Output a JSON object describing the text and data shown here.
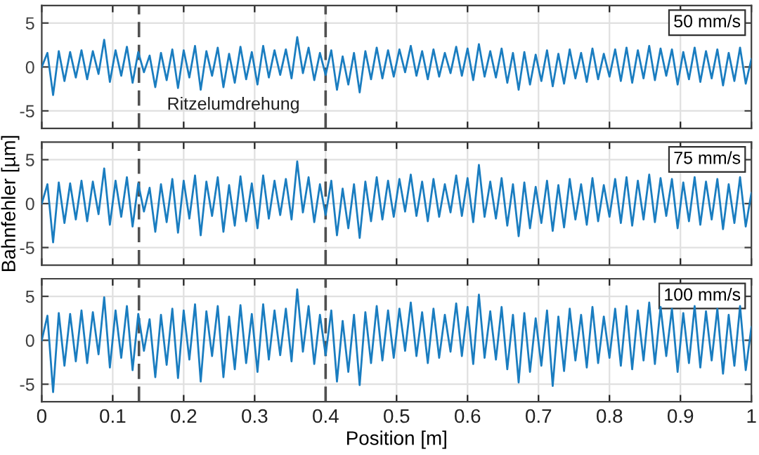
{
  "chart_data": [
    {
      "type": "line",
      "ylim": [
        -7,
        7
      ],
      "yticks": [
        -5,
        0,
        5
      ],
      "xlim": [
        0,
        1
      ],
      "xticks": [
        0,
        0.1,
        0.2,
        0.3,
        0.4,
        0.5,
        0.6,
        0.7,
        0.8,
        0.9,
        1
      ],
      "grid": true,
      "tick_labels": "y",
      "annotations": [
        "50 mm/s",
        "Ritzelumdrehung"
      ],
      "ref_lines": [
        {
          "axis": "x",
          "value": 0.137,
          "color": "#505050",
          "line_style": "dashed"
        },
        {
          "axis": "x",
          "value": 0.4,
          "color": "#505050",
          "line_style": "dashed"
        }
      ],
      "x": [
        0,
        0.008,
        0.016,
        0.024,
        0.032,
        0.04,
        0.048,
        0.056,
        0.064,
        0.072,
        0.08,
        0.088,
        0.096,
        0.104,
        0.112,
        0.12,
        0.128,
        0.136,
        0.144,
        0.152,
        0.16,
        0.168,
        0.176,
        0.184,
        0.192,
        0.2,
        0.208,
        0.216,
        0.224,
        0.232,
        0.24,
        0.248,
        0.256,
        0.264,
        0.272,
        0.28,
        0.288,
        0.296,
        0.304,
        0.312,
        0.32,
        0.328,
        0.336,
        0.344,
        0.352,
        0.36,
        0.368,
        0.376,
        0.384,
        0.392,
        0.4,
        0.408,
        0.416,
        0.424,
        0.432,
        0.44,
        0.448,
        0.456,
        0.464,
        0.472,
        0.48,
        0.488,
        0.496,
        0.504,
        0.512,
        0.52,
        0.528,
        0.536,
        0.544,
        0.552,
        0.56,
        0.568,
        0.576,
        0.584,
        0.592,
        0.6,
        0.608,
        0.616,
        0.624,
        0.632,
        0.64,
        0.648,
        0.656,
        0.664,
        0.672,
        0.68,
        0.688,
        0.696,
        0.704,
        0.712,
        0.72,
        0.728,
        0.736,
        0.744,
        0.752,
        0.76,
        0.768,
        0.776,
        0.784,
        0.792,
        0.8,
        0.808,
        0.816,
        0.824,
        0.832,
        0.84,
        0.848,
        0.856,
        0.864,
        0.872,
        0.88,
        0.888,
        0.896,
        0.904,
        0.912,
        0.92,
        0.928,
        0.936,
        0.944,
        0.952,
        0.96,
        0.968,
        0.976,
        0.984,
        0.992,
        1.0
      ],
      "series": [
        {
          "color": "#1a7dc0",
          "values": [
            0,
            1.6,
            -3.2,
            1.8,
            -1.6,
            1.7,
            -1.2,
            1.9,
            -1.4,
            1.8,
            -0.8,
            3.1,
            -1.7,
            1.9,
            -1.0,
            2.3,
            -1.8,
            1.7,
            -0.6,
            1.3,
            -2.3,
            1.6,
            -1.5,
            2.0,
            -2.4,
            1.9,
            -1.2,
            2.4,
            -2.6,
            1.8,
            -1.0,
            2.2,
            -2.3,
            1.5,
            -1.8,
            2.3,
            -1.4,
            1.7,
            -2.0,
            2.4,
            -1.2,
            1.9,
            -0.9,
            2.0,
            -1.3,
            3.4,
            -0.7,
            2.2,
            -1.5,
            1.6,
            -0.9,
            1.9,
            -2.6,
            1.2,
            -2.0,
            1.6,
            -2.9,
            1.8,
            -1.4,
            2.2,
            -1.3,
            1.9,
            -1.1,
            2.0,
            -0.6,
            2.4,
            -1.0,
            1.8,
            -1.4,
            2.0,
            -1.1,
            1.6,
            -0.7,
            2.3,
            -1.0,
            2.1,
            -1.5,
            2.6,
            -1.1,
            1.8,
            -1.2,
            2.1,
            -1.8,
            1.6,
            -2.6,
            1.7,
            -2.0,
            1.4,
            -1.6,
            1.9,
            -2.2,
            1.5,
            -1.9,
            2.0,
            -1.3,
            1.6,
            -1.7,
            2.1,
            -1.4,
            1.5,
            -1.1,
            2.0,
            -1.6,
            2.2,
            -1.8,
            1.9,
            -1.3,
            2.4,
            -1.5,
            2.1,
            -1.0,
            2.0,
            -2.0,
            1.7,
            -1.4,
            2.2,
            -1.7,
            1.8,
            -1.3,
            2.0,
            -2.1,
            1.6,
            -1.6,
            2.2,
            -1.9,
            0.9
          ]
        }
      ]
    },
    {
      "type": "line",
      "ylim": [
        -7,
        7
      ],
      "yticks": [
        -5,
        0,
        5
      ],
      "xlim": [
        0,
        1
      ],
      "xticks": [
        0,
        0.1,
        0.2,
        0.3,
        0.4,
        0.5,
        0.6,
        0.7,
        0.8,
        0.9,
        1
      ],
      "grid": true,
      "tick_labels": "y",
      "ylabel": "Bahnfehler [µm]",
      "annotations": [
        "75 mm/s"
      ],
      "ref_lines": [
        {
          "axis": "x",
          "value": 0.137,
          "color": "#505050",
          "line_style": "dashed"
        },
        {
          "axis": "x",
          "value": 0.4,
          "color": "#505050",
          "line_style": "dashed"
        }
      ],
      "x": [
        0,
        0.008,
        0.016,
        0.024,
        0.032,
        0.04,
        0.048,
        0.056,
        0.064,
        0.072,
        0.08,
        0.088,
        0.096,
        0.104,
        0.112,
        0.12,
        0.128,
        0.136,
        0.144,
        0.152,
        0.16,
        0.168,
        0.176,
        0.184,
        0.192,
        0.2,
        0.208,
        0.216,
        0.224,
        0.232,
        0.24,
        0.248,
        0.256,
        0.264,
        0.272,
        0.28,
        0.288,
        0.296,
        0.304,
        0.312,
        0.32,
        0.328,
        0.336,
        0.344,
        0.352,
        0.36,
        0.368,
        0.376,
        0.384,
        0.392,
        0.4,
        0.408,
        0.416,
        0.424,
        0.432,
        0.44,
        0.448,
        0.456,
        0.464,
        0.472,
        0.48,
        0.488,
        0.496,
        0.504,
        0.512,
        0.52,
        0.528,
        0.536,
        0.544,
        0.552,
        0.56,
        0.568,
        0.576,
        0.584,
        0.592,
        0.6,
        0.608,
        0.616,
        0.624,
        0.632,
        0.64,
        0.648,
        0.656,
        0.664,
        0.672,
        0.68,
        0.688,
        0.696,
        0.704,
        0.712,
        0.72,
        0.728,
        0.736,
        0.744,
        0.752,
        0.76,
        0.768,
        0.776,
        0.784,
        0.792,
        0.8,
        0.808,
        0.816,
        0.824,
        0.832,
        0.84,
        0.848,
        0.856,
        0.864,
        0.872,
        0.88,
        0.888,
        0.896,
        0.904,
        0.912,
        0.92,
        0.928,
        0.936,
        0.944,
        0.952,
        0.96,
        0.968,
        0.976,
        0.984,
        0.992,
        1.0
      ],
      "series": [
        {
          "color": "#1a7dc0",
          "values": [
            0,
            2.2,
            -4.4,
            2.4,
            -2.2,
            2.3,
            -1.8,
            2.6,
            -2.0,
            2.5,
            -1.2,
            4.0,
            -2.4,
            2.6,
            -1.5,
            3.0,
            -2.6,
            2.3,
            -0.9,
            1.8,
            -3.2,
            2.2,
            -2.1,
            2.8,
            -3.3,
            2.6,
            -1.7,
            3.2,
            -3.6,
            2.5,
            -1.4,
            3.0,
            -3.2,
            2.1,
            -2.5,
            3.1,
            -2.0,
            2.3,
            -2.8,
            3.2,
            -1.7,
            2.6,
            -1.3,
            2.8,
            -1.8,
            4.8,
            -1.0,
            3.0,
            -2.1,
            2.2,
            -1.3,
            2.6,
            -3.6,
            1.7,
            -2.8,
            2.2,
            -3.9,
            2.5,
            -2.0,
            3.0,
            -1.8,
            2.6,
            -1.5,
            2.8,
            -0.9,
            3.3,
            -1.4,
            2.5,
            -2.0,
            2.8,
            -1.5,
            2.2,
            -1.0,
            3.2,
            -1.4,
            2.9,
            -2.1,
            4.4,
            -1.5,
            2.5,
            -1.7,
            2.9,
            -2.5,
            2.2,
            -3.7,
            2.4,
            -2.8,
            1.9,
            -2.2,
            2.6,
            -3.1,
            2.1,
            -2.7,
            2.8,
            -1.8,
            2.2,
            -2.4,
            2.9,
            -2.0,
            2.1,
            -1.5,
            2.8,
            -2.2,
            3.0,
            -2.5,
            2.6,
            -1.8,
            3.3,
            -2.1,
            2.9,
            -1.4,
            2.8,
            -2.8,
            2.4,
            -2.0,
            3.0,
            -2.4,
            2.5,
            -1.8,
            2.8,
            -2.9,
            2.2,
            -2.2,
            3.0,
            -2.6,
            1.2
          ]
        }
      ]
    },
    {
      "type": "line",
      "ylim": [
        -7,
        7
      ],
      "yticks": [
        -5,
        0,
        5
      ],
      "xlim": [
        0,
        1
      ],
      "xticks": [
        0,
        0.1,
        0.2,
        0.3,
        0.4,
        0.5,
        0.6,
        0.7,
        0.8,
        0.9,
        1
      ],
      "grid": true,
      "xlabel": "Position [m]",
      "annotations": [
        "100 mm/s"
      ],
      "ref_lines": [
        {
          "axis": "x",
          "value": 0.137,
          "color": "#505050",
          "line_style": "dashed"
        },
        {
          "axis": "x",
          "value": 0.4,
          "color": "#505050",
          "line_style": "dashed"
        }
      ],
      "x": [
        0,
        0.008,
        0.016,
        0.024,
        0.032,
        0.04,
        0.048,
        0.056,
        0.064,
        0.072,
        0.08,
        0.088,
        0.096,
        0.104,
        0.112,
        0.12,
        0.128,
        0.136,
        0.144,
        0.152,
        0.16,
        0.168,
        0.176,
        0.184,
        0.192,
        0.2,
        0.208,
        0.216,
        0.224,
        0.232,
        0.24,
        0.248,
        0.256,
        0.264,
        0.272,
        0.28,
        0.288,
        0.296,
        0.304,
        0.312,
        0.32,
        0.328,
        0.336,
        0.344,
        0.352,
        0.36,
        0.368,
        0.376,
        0.384,
        0.392,
        0.4,
        0.408,
        0.416,
        0.424,
        0.432,
        0.44,
        0.448,
        0.456,
        0.464,
        0.472,
        0.48,
        0.488,
        0.496,
        0.504,
        0.512,
        0.52,
        0.528,
        0.536,
        0.544,
        0.552,
        0.56,
        0.568,
        0.576,
        0.584,
        0.592,
        0.6,
        0.608,
        0.616,
        0.624,
        0.632,
        0.64,
        0.648,
        0.656,
        0.664,
        0.672,
        0.68,
        0.688,
        0.696,
        0.704,
        0.712,
        0.72,
        0.728,
        0.736,
        0.744,
        0.752,
        0.76,
        0.768,
        0.776,
        0.784,
        0.792,
        0.8,
        0.808,
        0.816,
        0.824,
        0.832,
        0.84,
        0.848,
        0.856,
        0.864,
        0.872,
        0.88,
        0.888,
        0.896,
        0.904,
        0.912,
        0.92,
        0.928,
        0.936,
        0.944,
        0.952,
        0.96,
        0.968,
        0.976,
        0.984,
        0.992,
        1.0
      ],
      "series": [
        {
          "color": "#1a7dc0",
          "values": [
            0,
            2.8,
            -5.9,
            3.1,
            -2.9,
            3.0,
            -2.4,
            3.4,
            -2.6,
            3.2,
            -1.6,
            4.9,
            -3.1,
            3.4,
            -2.0,
            3.9,
            -3.4,
            3.0,
            -1.2,
            2.4,
            -4.2,
            2.9,
            -2.8,
            3.6,
            -4.3,
            3.4,
            -2.2,
            4.1,
            -4.7,
            3.3,
            -1.8,
            3.9,
            -4.2,
            2.7,
            -3.3,
            4.0,
            -2.6,
            3.0,
            -3.6,
            4.1,
            -2.2,
            3.4,
            -1.7,
            3.6,
            -2.4,
            5.8,
            -1.3,
            3.9,
            -2.7,
            2.9,
            -1.7,
            3.4,
            -4.7,
            2.2,
            -3.6,
            2.9,
            -5.1,
            3.2,
            -2.6,
            3.9,
            -2.3,
            3.4,
            -2.0,
            3.6,
            -1.2,
            4.3,
            -1.8,
            3.2,
            -2.6,
            3.6,
            -2.0,
            2.9,
            -1.3,
            4.2,
            -1.8,
            3.8,
            -2.7,
            5.2,
            -2.0,
            3.3,
            -2.2,
            3.8,
            -3.3,
            2.9,
            -4.8,
            3.1,
            -3.6,
            2.5,
            -2.9,
            3.4,
            -5.2,
            2.7,
            -3.5,
            3.6,
            -2.3,
            2.9,
            -3.1,
            3.8,
            -2.6,
            2.7,
            -2.0,
            3.6,
            -2.9,
            3.9,
            -3.3,
            3.4,
            -2.3,
            4.3,
            -2.7,
            3.8,
            -1.8,
            3.6,
            -3.6,
            3.1,
            -2.6,
            3.9,
            -3.1,
            3.3,
            -2.3,
            3.6,
            -3.8,
            2.9,
            -2.9,
            3.9,
            -3.4,
            1.5
          ]
        }
      ]
    }
  ]
}
